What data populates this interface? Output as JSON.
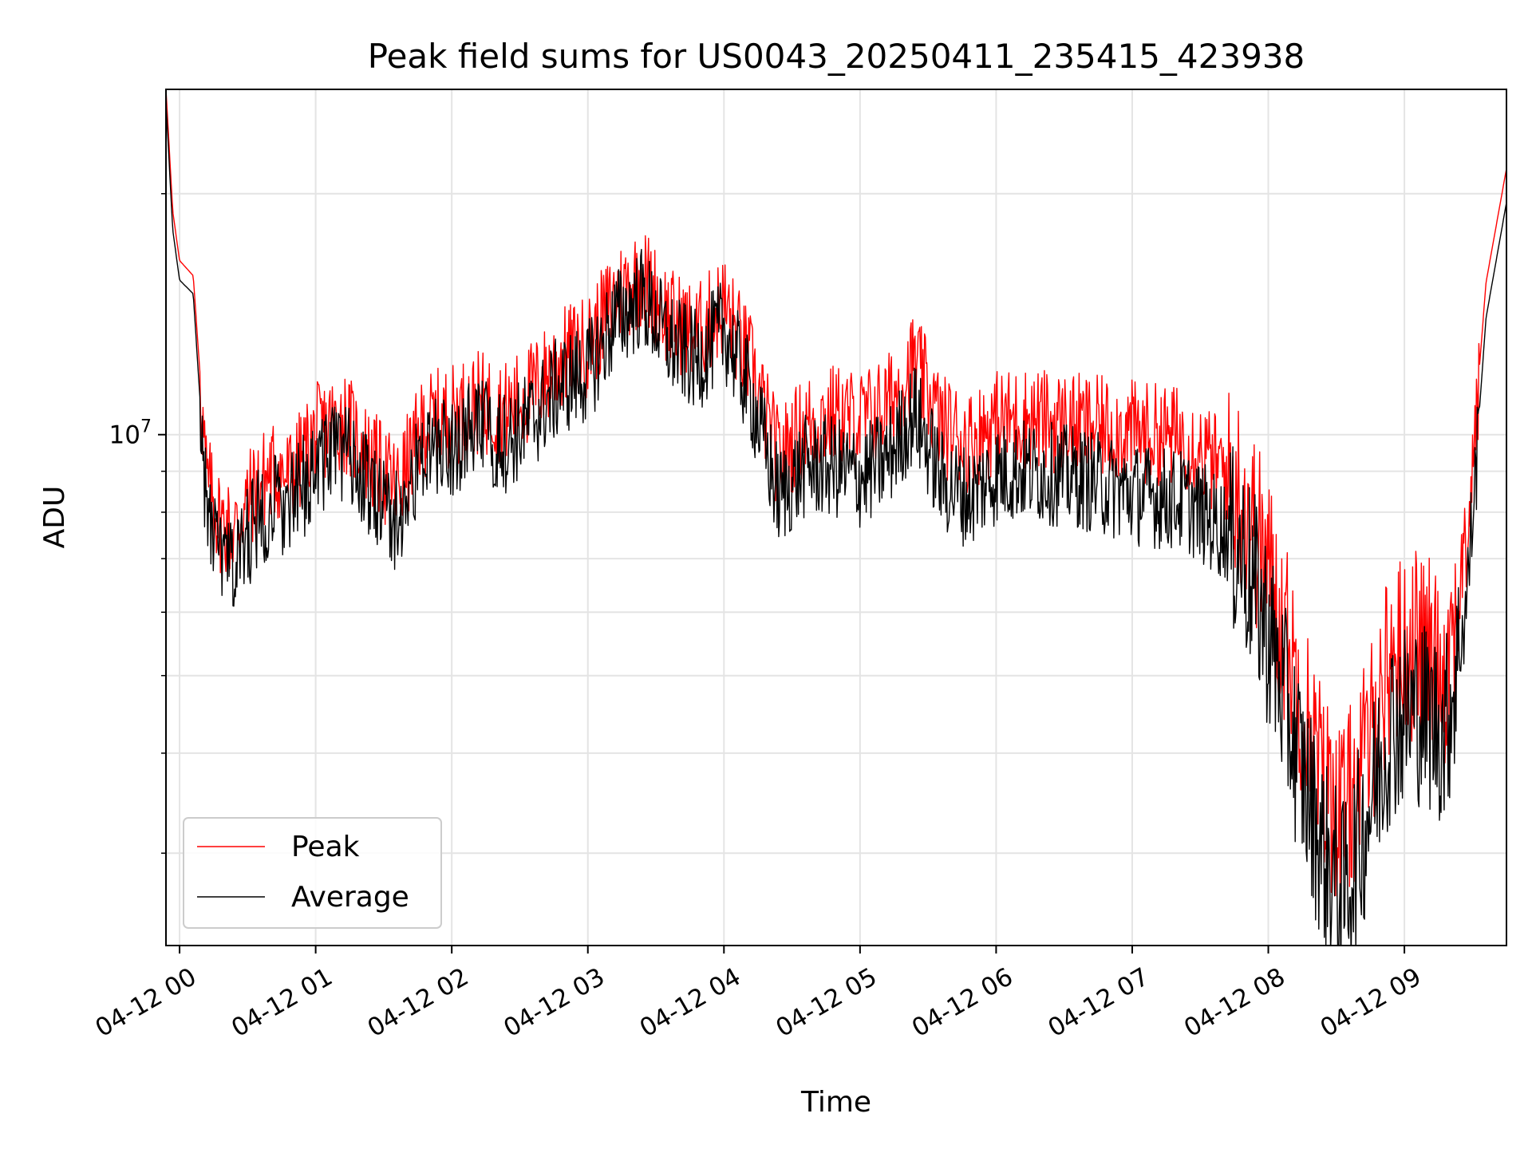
{
  "chart_data": {
    "type": "line",
    "title": "Peak field sums for US0043_20250411_235415_423938",
    "xlabel": "Time",
    "ylabel": "ADU",
    "x_axis": {
      "kind": "datetime",
      "tick_labels": [
        "04-12 00",
        "04-12 01",
        "04-12 02",
        "04-12 03",
        "04-12 04",
        "04-12 05",
        "04-12 06",
        "04-12 07",
        "04-12 08",
        "04-12 09"
      ],
      "tick_hours": [
        0,
        1,
        2,
        3,
        4,
        5,
        6,
        7,
        8,
        9
      ],
      "xlim_hours": [
        -0.1,
        9.75
      ]
    },
    "y_axis": {
      "scale": "log",
      "major_tick_label": "10^7",
      "major_tick_value": 10000000,
      "ylim": [
        2300000,
        27000000
      ],
      "minor_ticks": [
        3000000,
        4000000,
        5000000,
        6000000,
        7000000,
        8000000,
        9000000,
        20000000
      ]
    },
    "grid": true,
    "legend_position": "lower-left",
    "series": [
      {
        "name": "Peak",
        "color": "#ff0000",
        "hours": [
          -0.1,
          -0.05,
          0.0,
          0.1,
          0.2,
          0.3,
          0.4,
          0.5,
          0.6,
          0.7,
          0.8,
          0.9,
          1.0,
          1.2,
          1.4,
          1.6,
          1.8,
          2.0,
          2.2,
          2.4,
          2.6,
          2.8,
          3.0,
          3.2,
          3.4,
          3.6,
          3.8,
          4.0,
          4.2,
          4.4,
          4.6,
          4.8,
          5.0,
          5.2,
          5.4,
          5.6,
          5.8,
          6.0,
          6.2,
          6.4,
          6.6,
          6.8,
          7.0,
          7.2,
          7.4,
          7.6,
          7.8,
          8.0,
          8.2,
          8.4,
          8.55,
          8.7,
          8.9,
          9.1,
          9.3,
          9.45,
          9.6,
          9.75
        ],
        "values": [
          27000000,
          19000000,
          16500000,
          15800000,
          9000000,
          8000000,
          7800000,
          8500000,
          9000000,
          9300000,
          9100000,
          9600000,
          10300000,
          10800000,
          9600000,
          8800000,
          10600000,
          10900000,
          11300000,
          11000000,
          11700000,
          12800000,
          13300000,
          15300000,
          16300000,
          14400000,
          13700000,
          15000000,
          12500000,
          9600000,
          10600000,
          10900000,
          10700000,
          11200000,
          12700000,
          10600000,
          10100000,
          10700000,
          10800000,
          10700000,
          10600000,
          10500000,
          10400000,
          10300000,
          10200000,
          9500000,
          9000000,
          7200000,
          5300000,
          3900000,
          3500000,
          4100000,
          5600000,
          5800000,
          5400000,
          7300000,
          15500000,
          21500000
        ]
      },
      {
        "name": "Average",
        "color": "#000000",
        "hours": [
          -0.1,
          -0.05,
          0.0,
          0.1,
          0.2,
          0.3,
          0.4,
          0.5,
          0.6,
          0.7,
          0.8,
          0.9,
          1.0,
          1.2,
          1.4,
          1.6,
          1.8,
          2.0,
          2.2,
          2.4,
          2.6,
          2.8,
          3.0,
          3.2,
          3.4,
          3.6,
          3.8,
          4.0,
          4.2,
          4.4,
          4.6,
          4.8,
          5.0,
          5.2,
          5.4,
          5.6,
          5.8,
          6.0,
          6.2,
          6.4,
          6.6,
          6.8,
          7.0,
          7.2,
          7.4,
          7.6,
          7.8,
          8.0,
          8.2,
          8.4,
          8.55,
          8.7,
          8.9,
          9.1,
          9.3,
          9.45,
          9.6,
          9.75
        ],
        "values": [
          26000000,
          18000000,
          15600000,
          15000000,
          8200000,
          7200000,
          7000000,
          7700000,
          8200000,
          8500000,
          8300000,
          8800000,
          9500000,
          9900000,
          8800000,
          8000000,
          9800000,
          10000000,
          10500000,
          10100000,
          10800000,
          11900000,
          12300000,
          14300000,
          15300000,
          13400000,
          12700000,
          14000000,
          11500000,
          8600000,
          9400000,
          9400000,
          9100000,
          9600000,
          11000000,
          9000000,
          8600000,
          9200000,
          9300000,
          9200000,
          9100000,
          8900000,
          8700000,
          8600000,
          8500000,
          8000000,
          7600000,
          6000000,
          4300000,
          3200000,
          2800000,
          3400000,
          4600000,
          4800000,
          4500000,
          6200000,
          14000000,
          19500000
        ]
      }
    ]
  }
}
